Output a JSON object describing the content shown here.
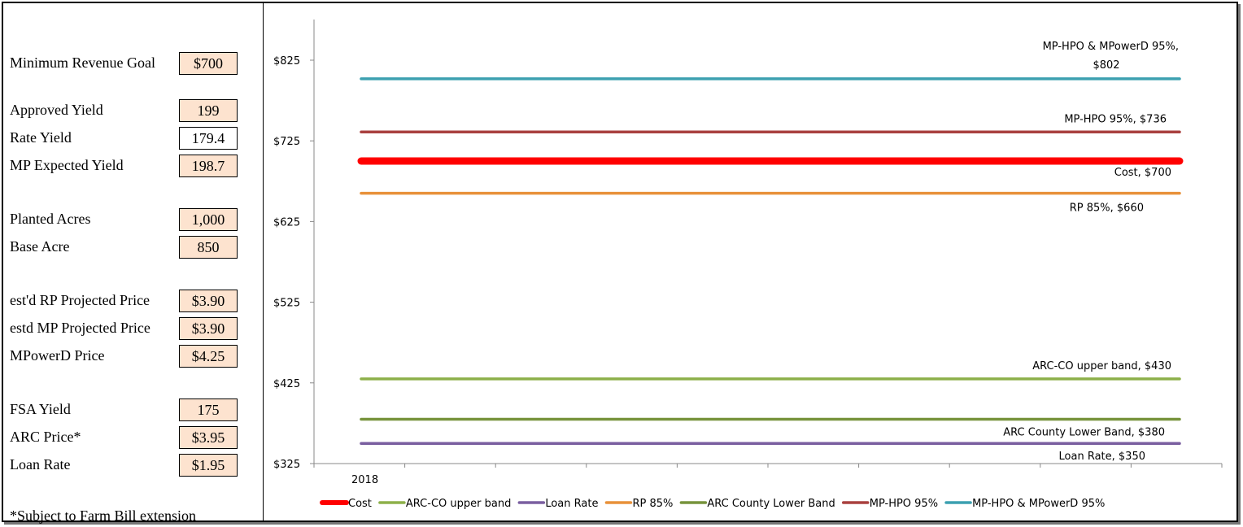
{
  "inputs": [
    {
      "label": "Minimum Revenue Goal",
      "value": "$700",
      "shaded": true
    },
    {
      "label": "Approved Yield",
      "value": "199",
      "shaded": true
    },
    {
      "label": "Rate Yield",
      "value": "179.4",
      "shaded": false
    },
    {
      "label": "MP Expected Yield",
      "value": "198.7",
      "shaded": true
    },
    {
      "label": "Planted Acres",
      "value": "1,000",
      "shaded": true
    },
    {
      "label": "Base Acre",
      "value": "850",
      "shaded": true
    },
    {
      "label": "est'd RP Projected Price",
      "value": "$3.90",
      "shaded": true
    },
    {
      "label": "estd MP Projected Price",
      "value": "$3.90",
      "shaded": true
    },
    {
      "label": "MPowerD Price",
      "value": "$4.25",
      "shaded": true
    },
    {
      "label": "FSA Yield",
      "value": "175",
      "shaded": true
    },
    {
      "label": "ARC Price*",
      "value": "$3.95",
      "shaded": true
    },
    {
      "label": "Loan Rate",
      "value": "$1.95",
      "shaded": true
    }
  ],
  "footnote": "*Subject to Farm Bill extension",
  "colors": {
    "shaded_cell": "#fde3cf"
  },
  "chart_data": {
    "type": "line",
    "categories": [
      "2018"
    ],
    "title": "",
    "xlabel": "",
    "ylabel": "",
    "ylim": [
      325,
      880
    ],
    "y_ticks": [
      325,
      425,
      525,
      625,
      725,
      825
    ],
    "y_tick_labels": [
      "$325",
      "$425",
      "$525",
      "$625",
      "$725",
      "$825"
    ],
    "grid": false,
    "legend_position": "bottom",
    "series": [
      {
        "name": "Cost",
        "values": [
          700
        ],
        "color": "#ff0000",
        "emphasis": true,
        "annotation": "Cost, $700"
      },
      {
        "name": "ARC-CO upper band",
        "values": [
          430
        ],
        "color": "#8db04a",
        "annotation": "ARC-CO upper band, $430"
      },
      {
        "name": "Loan Rate",
        "values": [
          350
        ],
        "color": "#7a5fa0",
        "annotation": "Loan Rate, $350"
      },
      {
        "name": "RP 85%",
        "values": [
          660
        ],
        "color": "#e8913a",
        "annotation": "RP 85%, $660"
      },
      {
        "name": "ARC County Lower Band",
        "values": [
          380
        ],
        "color": "#77933c",
        "annotation": "ARC County Lower Band, $380"
      },
      {
        "name": "MP-HPO 95%",
        "values": [
          736
        ],
        "color": "#a9413f",
        "annotation": "MP-HPO 95%, $736"
      },
      {
        "name": "MP-HPO & MPowerD 95%",
        "values": [
          802
        ],
        "color": "#3ca0b0",
        "annotation_lines": [
          "MP-HPO & MPowerD 95%,",
          "$802"
        ]
      }
    ]
  }
}
